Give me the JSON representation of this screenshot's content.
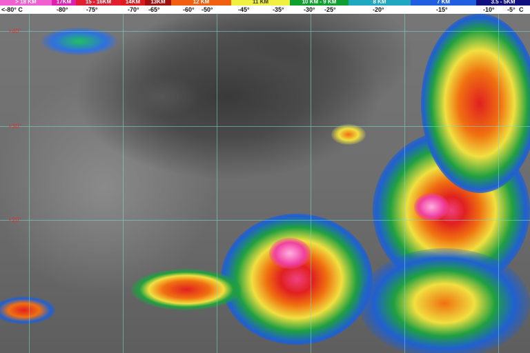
{
  "legend": {
    "bands": [
      {
        "label": "> 18 KM",
        "color": "#f060d0"
      },
      {
        "label": "17KM",
        "color": "#e020b0"
      },
      {
        "label": "15 - 16KM",
        "color": "#e02030"
      },
      {
        "label": "14KM",
        "color": "#e01820"
      },
      {
        "label": "13KM",
        "color": "#a01010"
      },
      {
        "label": "12 KM",
        "color": "#f06010"
      },
      {
        "label": "11 KM",
        "color": "#f0f040"
      },
      {
        "label": "10 KM - 9 KM",
        "color": "#10a030"
      },
      {
        "label": "8 KM",
        "color": "#20a8c0"
      },
      {
        "label": "7 KM",
        "color": "#2060e0"
      },
      {
        "label": "3.5 - 5KM",
        "color": "#101080"
      }
    ],
    "temperatures": [
      "<-80° C",
      "-80°",
      "-75°",
      "-70°",
      "-65°",
      "-60°",
      "-50°",
      "-45°",
      "-35°",
      "-30°",
      "-25°",
      "-20°",
      "-15°",
      "-10°",
      "-5°",
      "C"
    ]
  },
  "map": {
    "latitude_labels": [
      "+40°",
      "+30°",
      "+20°"
    ]
  }
}
